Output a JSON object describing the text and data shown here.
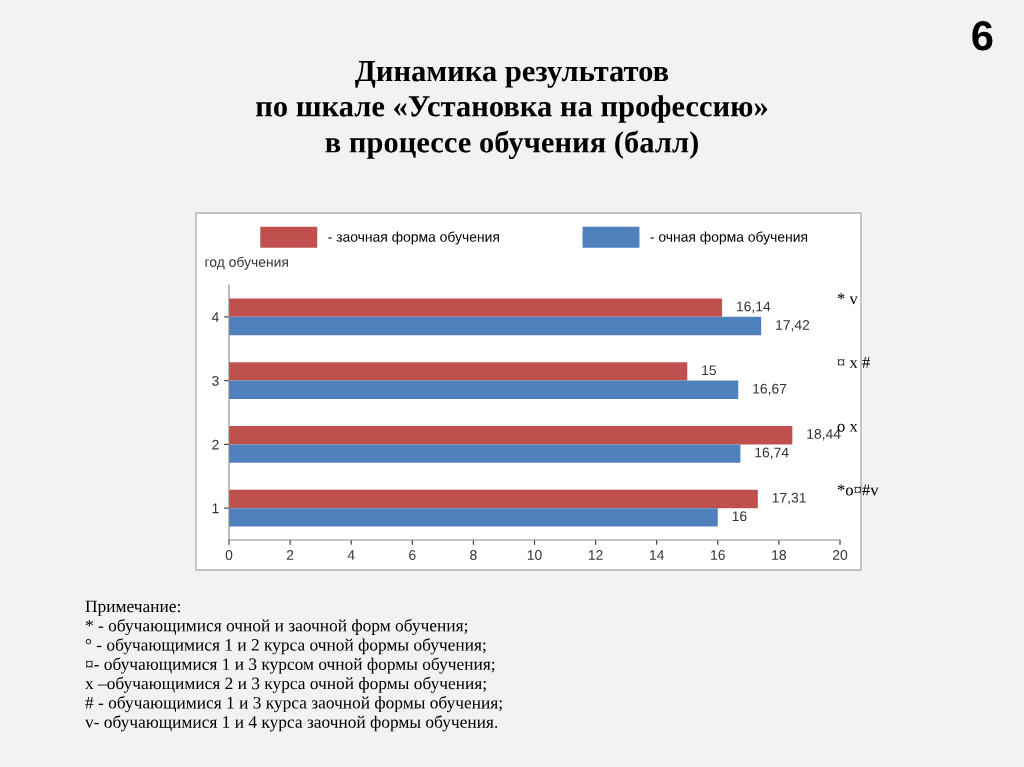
{
  "chart_data": {
    "type": "bar",
    "orientation": "horizontal",
    "title": "Динамика результатов\nпо шкале «Установка на профессию»\nв процессе обучения (балл)",
    "ylabel": "год обучения",
    "categories": [
      "4",
      "3",
      "2",
      "1"
    ],
    "series": [
      {
        "name": "- заочная форма обучения",
        "color": "#c0504d",
        "values": [
          16.14,
          15,
          18.44,
          17.31
        ],
        "value_labels": [
          "16,14",
          "15",
          "18,44",
          "17,31"
        ]
      },
      {
        "name": "- очная форма обучения",
        "color": "#4f81bd",
        "values": [
          17.42,
          16.67,
          16.74,
          16
        ],
        "value_labels": [
          "17,42",
          "16,67",
          "16,74",
          "16"
        ]
      }
    ],
    "xlim": [
      0,
      20
    ],
    "xticks": [
      0,
      2,
      4,
      6,
      8,
      10,
      12,
      14,
      16,
      18,
      20
    ],
    "grid": false,
    "legend": "top",
    "annotations": [
      "* v",
      "¤ x #",
      "o x",
      "*o¤#v",
      "6",
      "Примечание:\n* - обучающимися очной и заочной форм обучения;\n° - обучающимися 1 и 2 курса очной формы обучения;\n¤- обучающимися 1 и 3 курсом очной формы обучения;\nx –обучающимися 2 и 3 курса очной формы обучения;\n# - обучающимися 1 и 3 курса заочной формы обучения;\nv- обучающимися 1 и 4 курса заочной формы обучения."
    ]
  }
}
